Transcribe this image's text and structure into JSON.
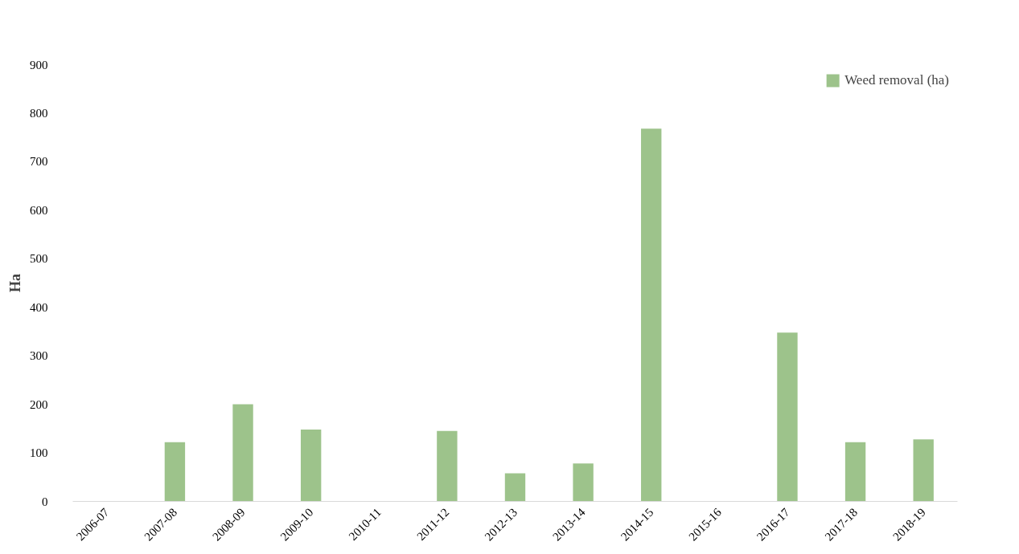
{
  "chart_data": {
    "type": "bar",
    "ylabel": "Ha",
    "categories": [
      "2006-07",
      "2007-08",
      "2008-09",
      "2009-10",
      "2010-11",
      "2011-12",
      "2012-13",
      "2013-14",
      "2014-15",
      "2015-16",
      "2016-17",
      "2017-18",
      "2018-19"
    ],
    "series": [
      {
        "name": "Weed removal (ha)",
        "color": "#9dc38b",
        "values": [
          0,
          122,
          200,
          148,
          0,
          145,
          58,
          78,
          768,
          0,
          348,
          122,
          128
        ]
      }
    ],
    "ylim": [
      0,
      900
    ],
    "yticks": [
      0,
      100,
      200,
      300,
      400,
      500,
      600,
      700,
      800,
      900
    ],
    "grid": false,
    "legend": "top right"
  }
}
